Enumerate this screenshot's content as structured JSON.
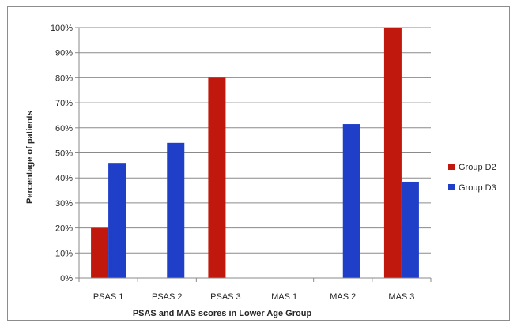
{
  "chart_data": {
    "type": "bar",
    "xlabel": "PSAS and MAS scores in Lower Age Group",
    "ylabel": "Percentage of patients",
    "ylim": [
      0,
      100
    ],
    "y_tick_values": [
      0,
      10,
      20,
      30,
      40,
      50,
      60,
      70,
      80,
      90,
      100
    ],
    "y_tick_labels": [
      "0%",
      "10%",
      "20%",
      "30%",
      "40%",
      "50%",
      "60%",
      "70%",
      "80%",
      "90%",
      "100%"
    ],
    "grid": true,
    "legend_position": "right",
    "categories": [
      "PSAS 1",
      "PSAS 2",
      "PSAS 3",
      "MAS 1",
      "MAS 2",
      "MAS 3"
    ],
    "series": [
      {
        "name": "Group D2",
        "color": "#c0180c",
        "values": [
          20,
          0,
          80,
          0,
          0,
          100
        ]
      },
      {
        "name": "Group D3",
        "color": "#1f3fc8",
        "values": [
          46,
          54,
          0,
          0,
          61.5,
          38.5
        ]
      }
    ]
  }
}
